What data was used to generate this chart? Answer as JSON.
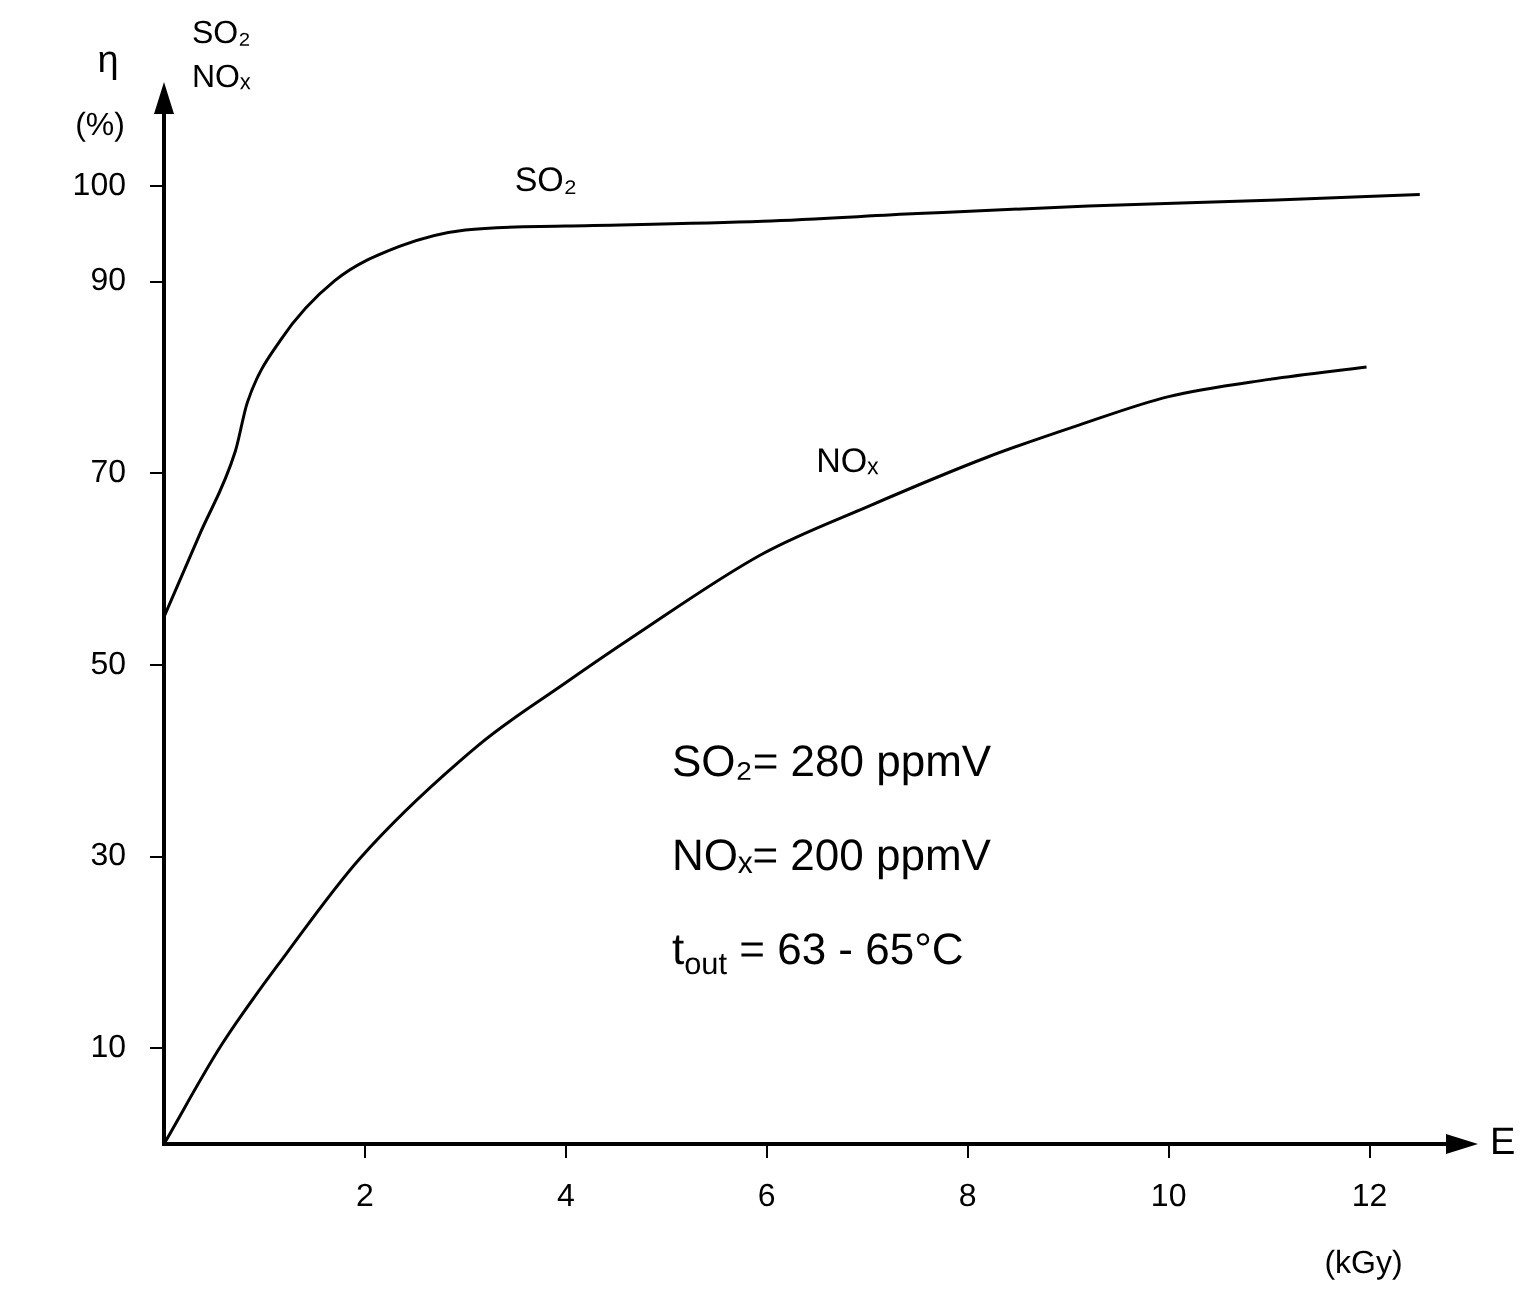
{
  "chart_data": {
    "type": "line",
    "xlabel": "E",
    "ylabel": "η (%)",
    "xlim": [
      0,
      13
    ],
    "ylim": [
      0,
      110
    ],
    "xticks": [
      2,
      4,
      6,
      8,
      10,
      12
    ],
    "yticks": [
      10,
      30,
      50,
      70,
      90,
      100
    ],
    "grid": false,
    "legend": false,
    "marker": "none",
    "line_style": "solid",
    "series": [
      {
        "name": "SO₂",
        "color": "#000000",
        "x": [
          0,
          0.35,
          0.71,
          0.83,
          1.16,
          1.7,
          2.35,
          3.0,
          4.0,
          5.96,
          7.5,
          9.2,
          11,
          12.5
        ],
        "values": [
          55,
          63.5,
          72.3,
          77.4,
          83.9,
          90.1,
          93.7,
          95.4,
          95.8,
          96.3,
          97.1,
          97.9,
          98.5,
          99.1
        ]
      },
      {
        "name": "NOₓ",
        "color": "#000000",
        "x": [
          0,
          0.57,
          1.22,
          1.95,
          3.14,
          3.98,
          4.65,
          5.96,
          7,
          8.2,
          9.1,
          10,
          11,
          11.97
        ],
        "values": [
          0,
          10.3,
          19.9,
          29.8,
          41.7,
          48,
          52.8,
          61.6,
          66.5,
          71.7,
          75,
          78,
          79.8,
          81.1
        ]
      }
    ],
    "annotations": [
      "SO₂ NOₓ",
      "(kGy)",
      "SO₂= 280 ppmV",
      "NOₓ= 200 ppmV",
      "t$_{out}$ = 63 - 65°C"
    ]
  }
}
